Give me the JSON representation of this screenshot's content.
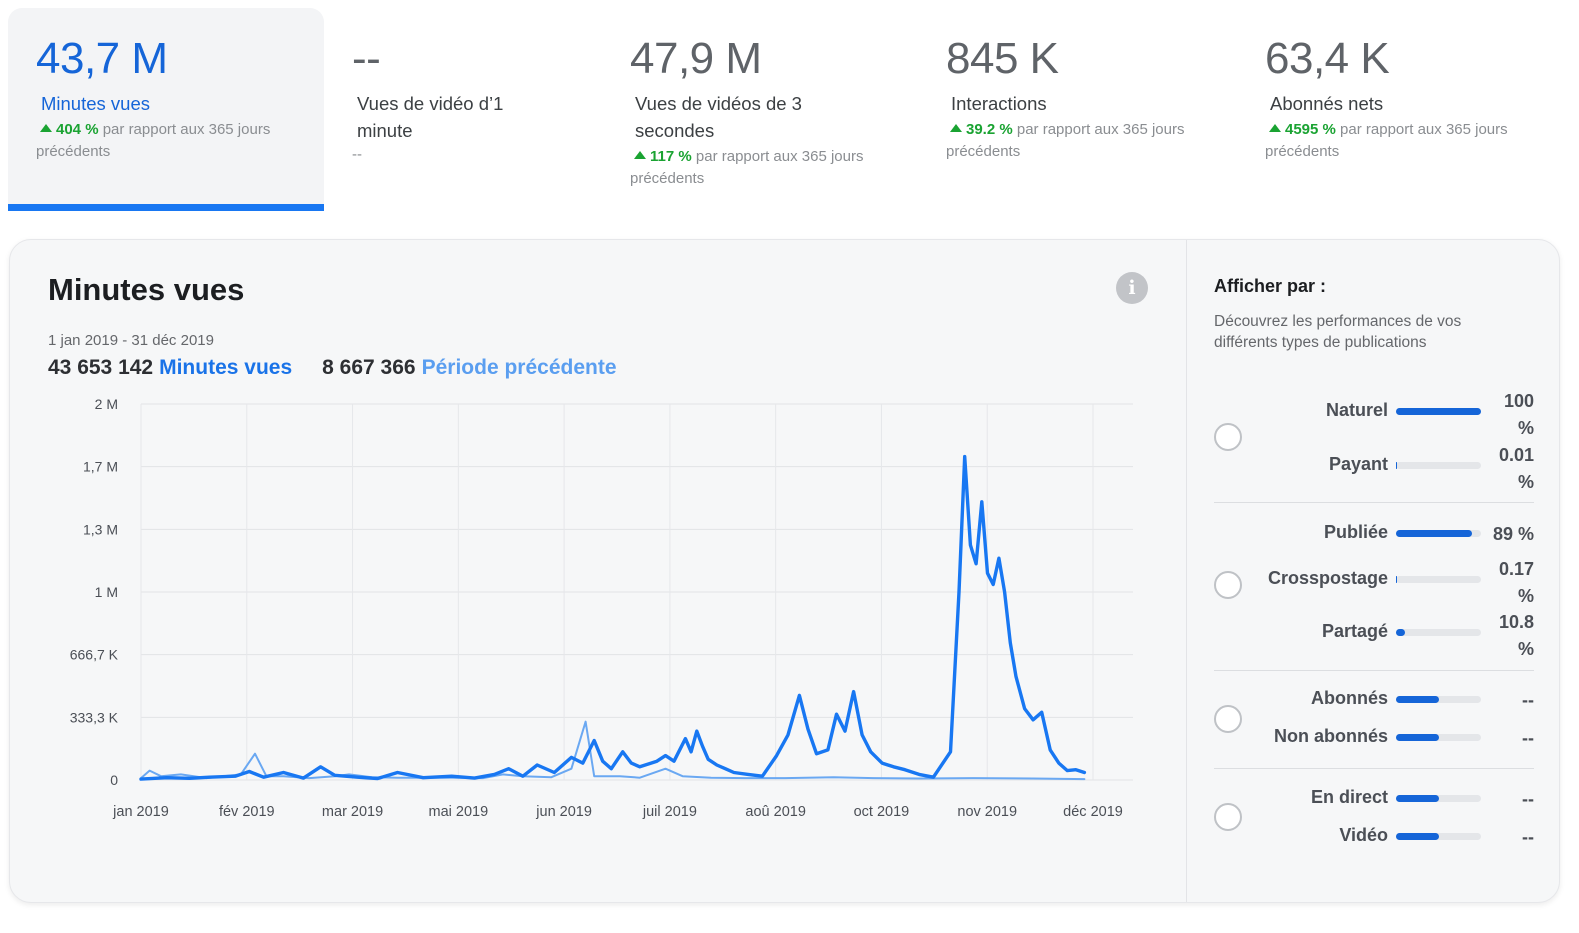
{
  "metrics": [
    {
      "value": "43,7 M",
      "label": "Minutes vues",
      "change_value": "404 %",
      "change_text": "par rapport aux 365 jours précédents",
      "active": true
    },
    {
      "value": "--",
      "label": "Vues de vidéo d’1 minute",
      "change_value": "",
      "change_text": "--",
      "active": false
    },
    {
      "value": "47,9 M",
      "label": "Vues de vidéos de 3 secondes",
      "change_value": "117 %",
      "change_text": "par rapport aux 365 jours précédents",
      "active": false
    },
    {
      "value": "845 K",
      "label": "Interactions",
      "change_value": "39.2 %",
      "change_text": "par rapport aux 365 jours précédents",
      "active": false
    },
    {
      "value": "63,4 K",
      "label": "Abonnés nets",
      "change_value": "4595 %",
      "change_text": "par rapport aux 365 jours précédents",
      "active": false
    }
  ],
  "panel": {
    "title": "Minutes vues",
    "info_icon": "info-icon",
    "date_range": "1 jan 2019 - 31 déc 2019",
    "total_current": "43 653 142",
    "total_current_label": "Minutes vues",
    "total_previous": "8 667 366",
    "total_previous_label": "Période précédente"
  },
  "sidebar": {
    "title": "Afficher par :",
    "description": "Découvrez les performances de vos différents types de publications",
    "groups": [
      {
        "rows": [
          {
            "label": "Naturel",
            "pct": "100 %",
            "fill": 1.0
          },
          {
            "label": "Payant",
            "pct": "0.01 %",
            "fill": 0.0001
          }
        ]
      },
      {
        "rows": [
          {
            "label": "Publiée",
            "pct": "89 %",
            "fill": 0.89
          },
          {
            "label": "Crosspostage",
            "pct": "0.17 %",
            "fill": 0.0017
          },
          {
            "label": "Partagé",
            "pct": "10.8 %",
            "fill": 0.108
          }
        ]
      },
      {
        "rows": [
          {
            "label": "Abonnés",
            "pct": "--",
            "fill": 0.5
          },
          {
            "label": "Non abonnés",
            "pct": "--",
            "fill": 0.5
          }
        ]
      },
      {
        "rows": [
          {
            "label": "En direct",
            "pct": "--",
            "fill": 0.5
          },
          {
            "label": "Vidéo",
            "pct": "--",
            "fill": 0.5
          }
        ]
      }
    ]
  },
  "colors": {
    "accent": "#1565d8",
    "current_series": "#1877f2",
    "previous_series": "#6aa8f2",
    "positive": "#1aa332"
  },
  "chart_data": {
    "type": "line",
    "title": "Minutes vues",
    "xlabel": "",
    "ylabel": "",
    "x_tick_labels": [
      "jan 2019",
      "fév 2019",
      "mar 2019",
      "mai 2019",
      "jun 2019",
      "juil 2019",
      "aoû 2019",
      "oct 2019",
      "nov 2019",
      "déc 2019"
    ],
    "y_tick_labels": [
      "0",
      "333,3 K",
      "666,7 K",
      "1 M",
      "1,3 M",
      "1,7 M",
      "2 M"
    ],
    "y_tick_values": [
      0,
      333333,
      666667,
      1000000,
      1333333,
      1666667,
      2000000
    ],
    "ylim": [
      0,
      2000000
    ],
    "xlim": [
      "2019-01-01",
      "2019-12-01"
    ],
    "grid": true,
    "legend": "none",
    "series": [
      {
        "name": "Minutes vues",
        "color": "#1877f2",
        "points": [
          [
            "2019-01-01",
            5000
          ],
          [
            "2019-01-10",
            12000
          ],
          [
            "2019-01-18",
            9000
          ],
          [
            "2019-01-25",
            15000
          ],
          [
            "2019-02-03",
            20000
          ],
          [
            "2019-02-08",
            45000
          ],
          [
            "2019-02-13",
            15000
          ],
          [
            "2019-02-20",
            40000
          ],
          [
            "2019-02-27",
            10000
          ],
          [
            "2019-03-05",
            70000
          ],
          [
            "2019-03-10",
            25000
          ],
          [
            "2019-03-18",
            15000
          ],
          [
            "2019-03-25",
            8000
          ],
          [
            "2019-04-01",
            40000
          ],
          [
            "2019-04-10",
            12000
          ],
          [
            "2019-04-20",
            20000
          ],
          [
            "2019-04-28",
            10000
          ],
          [
            "2019-05-05",
            30000
          ],
          [
            "2019-05-10",
            60000
          ],
          [
            "2019-05-15",
            20000
          ],
          [
            "2019-05-20",
            80000
          ],
          [
            "2019-05-26",
            40000
          ],
          [
            "2019-06-01",
            120000
          ],
          [
            "2019-06-05",
            90000
          ],
          [
            "2019-06-09",
            210000
          ],
          [
            "2019-06-12",
            100000
          ],
          [
            "2019-06-15",
            60000
          ],
          [
            "2019-06-19",
            150000
          ],
          [
            "2019-06-22",
            90000
          ],
          [
            "2019-06-25",
            70000
          ],
          [
            "2019-07-01",
            100000
          ],
          [
            "2019-07-04",
            130000
          ],
          [
            "2019-07-07",
            100000
          ],
          [
            "2019-07-11",
            220000
          ],
          [
            "2019-07-13",
            150000
          ],
          [
            "2019-07-15",
            260000
          ],
          [
            "2019-07-17",
            180000
          ],
          [
            "2019-07-19",
            110000
          ],
          [
            "2019-07-22",
            80000
          ],
          [
            "2019-07-25",
            60000
          ],
          [
            "2019-07-28",
            40000
          ],
          [
            "2019-08-02",
            30000
          ],
          [
            "2019-08-07",
            20000
          ],
          [
            "2019-08-12",
            130000
          ],
          [
            "2019-08-16",
            240000
          ],
          [
            "2019-08-20",
            450000
          ],
          [
            "2019-08-23",
            270000
          ],
          [
            "2019-08-26",
            140000
          ],
          [
            "2019-08-30",
            160000
          ],
          [
            "2019-09-02",
            350000
          ],
          [
            "2019-09-05",
            260000
          ],
          [
            "2019-09-08",
            470000
          ],
          [
            "2019-09-11",
            240000
          ],
          [
            "2019-09-14",
            150000
          ],
          [
            "2019-09-18",
            90000
          ],
          [
            "2019-09-22",
            70000
          ],
          [
            "2019-09-26",
            55000
          ],
          [
            "2019-10-01",
            30000
          ],
          [
            "2019-10-06",
            15000
          ],
          [
            "2019-10-12",
            150000
          ],
          [
            "2019-10-15",
            1000000
          ],
          [
            "2019-10-17",
            1720000
          ],
          [
            "2019-10-19",
            1250000
          ],
          [
            "2019-10-21",
            1150000
          ],
          [
            "2019-10-23",
            1480000
          ],
          [
            "2019-10-25",
            1100000
          ],
          [
            "2019-10-27",
            1040000
          ],
          [
            "2019-10-29",
            1180000
          ],
          [
            "2019-10-31",
            1000000
          ],
          [
            "2019-11-02",
            730000
          ],
          [
            "2019-11-04",
            550000
          ],
          [
            "2019-11-07",
            380000
          ],
          [
            "2019-11-10",
            320000
          ],
          [
            "2019-11-13",
            360000
          ],
          [
            "2019-11-16",
            160000
          ],
          [
            "2019-11-19",
            90000
          ],
          [
            "2019-11-22",
            50000
          ],
          [
            "2019-11-25",
            55000
          ],
          [
            "2019-11-28",
            40000
          ]
        ]
      },
      {
        "name": "Période précédente",
        "color": "#6aa8f2",
        "points": [
          [
            "2019-01-01",
            10000
          ],
          [
            "2019-01-04",
            50000
          ],
          [
            "2019-01-08",
            20000
          ],
          [
            "2019-01-15",
            30000
          ],
          [
            "2019-01-24",
            10000
          ],
          [
            "2019-02-05",
            30000
          ],
          [
            "2019-02-10",
            140000
          ],
          [
            "2019-02-14",
            20000
          ],
          [
            "2019-02-20",
            20000
          ],
          [
            "2019-03-01",
            10000
          ],
          [
            "2019-03-10",
            20000
          ],
          [
            "2019-03-15",
            30000
          ],
          [
            "2019-03-23",
            15000
          ],
          [
            "2019-04-01",
            12000
          ],
          [
            "2019-04-20",
            12000
          ],
          [
            "2019-05-01",
            10000
          ],
          [
            "2019-05-08",
            30000
          ],
          [
            "2019-05-15",
            20000
          ],
          [
            "2019-05-25",
            15000
          ],
          [
            "2019-06-01",
            60000
          ],
          [
            "2019-06-06",
            310000
          ],
          [
            "2019-06-09",
            20000
          ],
          [
            "2019-06-18",
            20000
          ],
          [
            "2019-06-25",
            12000
          ],
          [
            "2019-07-04",
            60000
          ],
          [
            "2019-07-10",
            20000
          ],
          [
            "2019-07-20",
            12000
          ],
          [
            "2019-08-01",
            10000
          ],
          [
            "2019-08-15",
            10000
          ],
          [
            "2019-09-01",
            15000
          ],
          [
            "2019-09-15",
            10000
          ],
          [
            "2019-10-01",
            8000
          ],
          [
            "2019-10-20",
            10000
          ],
          [
            "2019-11-10",
            8000
          ],
          [
            "2019-11-28",
            5000
          ]
        ]
      }
    ],
    "note": "Approximate values read from the rendered line; the x-axis ticks are not evenly spaced by calendar date (some months omitted), so x values are mapped in the chart's visual tick space."
  }
}
